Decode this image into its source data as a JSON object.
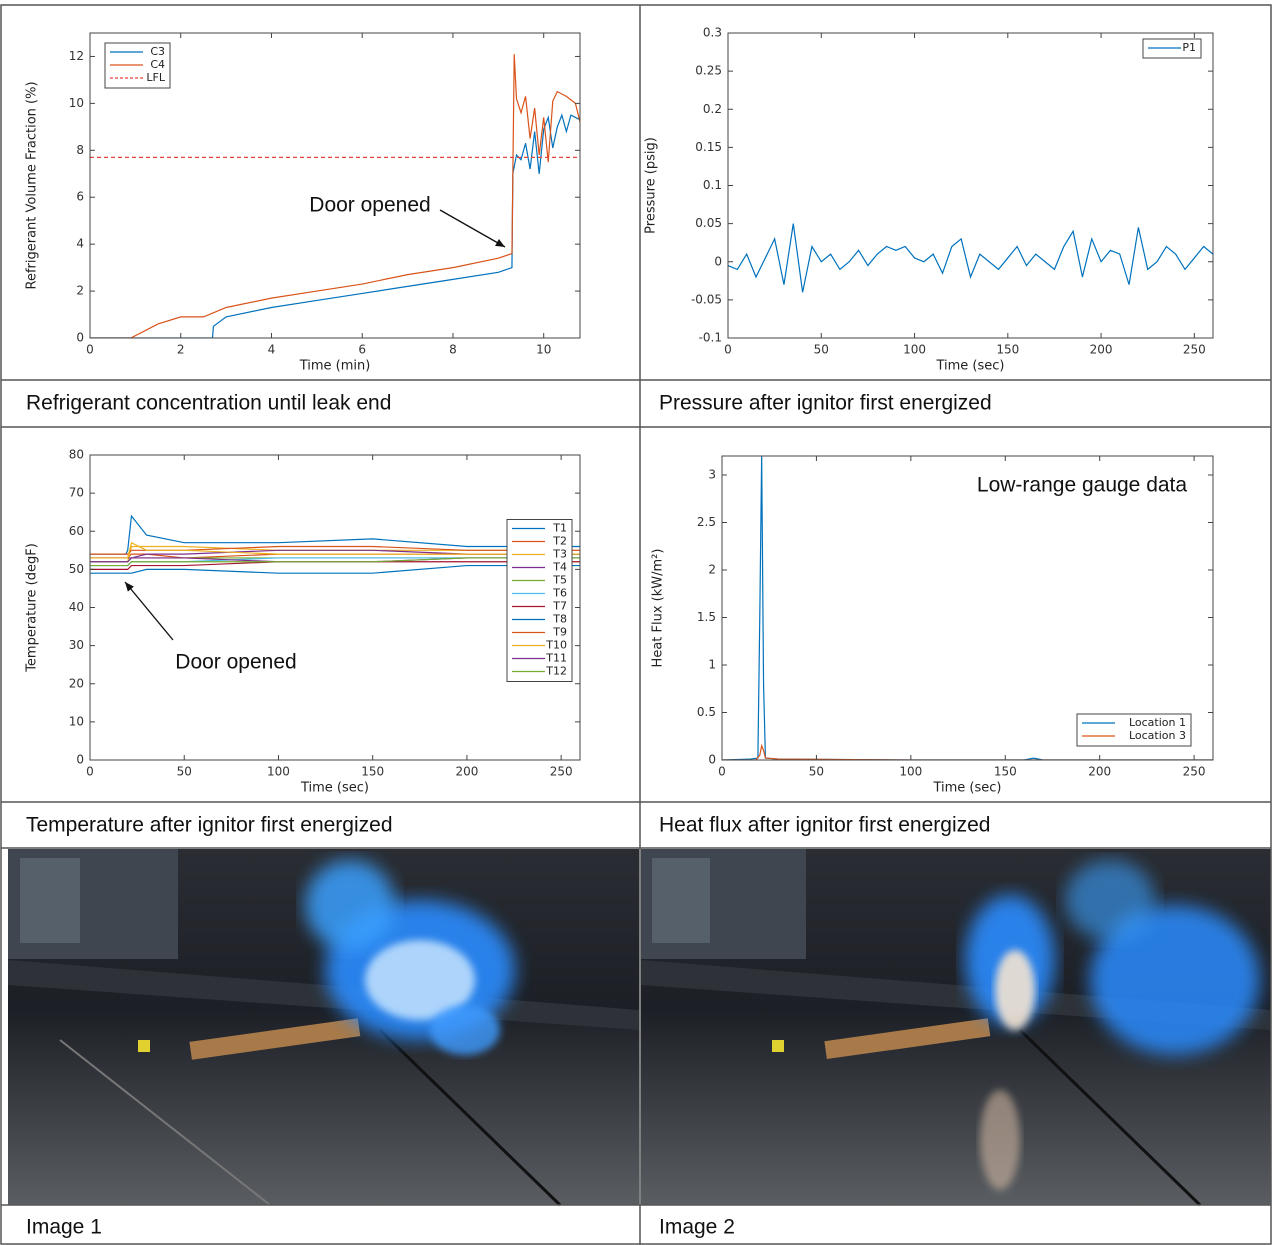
{
  "chart_data": [
    {
      "type": "line",
      "xlabel": "Time (min)",
      "ylabel": "Refrigerant Volume Fraction (%)",
      "xlim": [
        0,
        10.8
      ],
      "ylim": [
        0,
        13
      ],
      "xticks": [
        0,
        2,
        4,
        6,
        8,
        10
      ],
      "yticks": [
        0,
        2,
        4,
        6,
        8,
        10,
        12
      ],
      "legend": "upper-left",
      "annotation": "Door opened",
      "series": [
        {
          "name": "C3",
          "color": "#0072bd",
          "linestyle": "solid",
          "x": [
            0,
            2.7,
            2.72,
            3,
            4,
            5,
            6,
            7,
            8,
            9,
            9.3,
            9.32,
            9.4,
            9.5,
            9.6,
            9.7,
            9.8,
            9.9,
            10,
            10.1,
            10.2,
            10.3,
            10.4,
            10.5,
            10.6,
            10.7,
            10.8
          ],
          "values": [
            0,
            0,
            0.5,
            0.9,
            1.3,
            1.6,
            1.9,
            2.2,
            2.5,
            2.8,
            3.0,
            7.0,
            7.8,
            7.6,
            8.3,
            7.2,
            8.8,
            7.0,
            8.9,
            9.4,
            8.1,
            9.0,
            9.5,
            8.8,
            9.5,
            9.4,
            9.3
          ]
        },
        {
          "name": "C4",
          "color": "#d95319",
          "linestyle": "solid",
          "x": [
            0,
            0.9,
            1.5,
            2,
            2.5,
            3,
            4,
            5,
            6,
            7,
            8,
            9,
            9.3,
            9.35,
            9.4,
            9.5,
            9.6,
            9.7,
            9.8,
            9.9,
            10,
            10.1,
            10.2,
            10.3,
            10.5,
            10.7,
            10.8
          ],
          "values": [
            0,
            0,
            0.6,
            0.9,
            0.9,
            1.3,
            1.7,
            2.0,
            2.3,
            2.7,
            3.0,
            3.4,
            3.6,
            12.1,
            10.2,
            9.6,
            10.3,
            8.5,
            9.8,
            7.8,
            9.4,
            7.5,
            10.1,
            10.5,
            10.3,
            10.0,
            9.2
          ]
        },
        {
          "name": "LFL",
          "color": "#e8453c",
          "linestyle": "dashed",
          "x": [
            0,
            10.8
          ],
          "values": [
            7.7,
            7.7
          ]
        }
      ]
    },
    {
      "type": "line",
      "xlabel": "Time (sec)",
      "ylabel": "Pressure (psig)",
      "xlim": [
        0,
        260
      ],
      "ylim": [
        -0.1,
        0.3
      ],
      "xticks": [
        0,
        50,
        100,
        150,
        200,
        250
      ],
      "yticks": [
        -0.1,
        -0.05,
        0,
        0.05,
        0.1,
        0.15,
        0.2,
        0.25,
        0.3
      ],
      "legend": "upper-right",
      "series": [
        {
          "name": "P1",
          "color": "#0072bd",
          "linestyle": "solid",
          "x": [
            0,
            5,
            10,
            15,
            20,
            25,
            30,
            35,
            40,
            45,
            50,
            55,
            60,
            65,
            70,
            75,
            80,
            85,
            90,
            95,
            100,
            105,
            110,
            115,
            120,
            125,
            130,
            135,
            140,
            145,
            150,
            155,
            160,
            165,
            170,
            175,
            180,
            185,
            190,
            195,
            200,
            205,
            210,
            215,
            220,
            225,
            230,
            235,
            240,
            245,
            250,
            255,
            260
          ],
          "values": [
            -0.005,
            -0.01,
            0.01,
            -0.02,
            0.005,
            0.03,
            -0.03,
            0.05,
            -0.04,
            0.02,
            0.0,
            0.01,
            -0.01,
            0.0,
            0.015,
            -0.005,
            0.01,
            0.02,
            0.015,
            0.02,
            0.005,
            0.0,
            0.01,
            -0.015,
            0.02,
            0.03,
            -0.02,
            0.01,
            0.0,
            -0.01,
            0.005,
            0.02,
            -0.005,
            0.01,
            0.0,
            -0.01,
            0.02,
            0.04,
            -0.02,
            0.03,
            0.0,
            0.015,
            0.01,
            -0.03,
            0.045,
            -0.01,
            0.0,
            0.02,
            0.01,
            -0.01,
            0.005,
            0.02,
            0.01
          ]
        }
      ]
    },
    {
      "type": "line",
      "xlabel": "Time (sec)",
      "ylabel": "Temperature (degF)",
      "xlim": [
        0,
        260
      ],
      "ylim": [
        0,
        80
      ],
      "xticks": [
        0,
        50,
        100,
        150,
        200,
        250
      ],
      "yticks": [
        0,
        10,
        20,
        30,
        40,
        50,
        60,
        70,
        80
      ],
      "legend": "center-right",
      "annotation": "Door opened",
      "x": [
        0,
        10,
        19,
        20,
        22,
        30,
        50,
        100,
        150,
        200,
        260
      ],
      "series": [
        {
          "name": "T1",
          "color": "#0072bd",
          "linestyle": "solid",
          "values": [
            54,
            54,
            54,
            55,
            64,
            59,
            57,
            57,
            58,
            56,
            56
          ]
        },
        {
          "name": "T2",
          "color": "#d95319",
          "linestyle": "solid",
          "values": [
            53,
            53,
            53,
            53,
            54,
            54,
            53,
            54,
            54,
            54,
            54
          ]
        },
        {
          "name": "T3",
          "color": "#edb120",
          "linestyle": "solid",
          "values": [
            52,
            52,
            52,
            52,
            56,
            56,
            56,
            55,
            55,
            55,
            55
          ]
        },
        {
          "name": "T4",
          "color": "#7e2f8e",
          "linestyle": "solid",
          "values": [
            53,
            53,
            53,
            53,
            53,
            54,
            54,
            55,
            55,
            54,
            54
          ]
        },
        {
          "name": "T5",
          "color": "#77ac30",
          "linestyle": "solid",
          "values": [
            52,
            52,
            52,
            52,
            53,
            53,
            53,
            53,
            53,
            53,
            53
          ]
        },
        {
          "name": "T6",
          "color": "#4dbeee",
          "linestyle": "solid",
          "values": [
            51,
            51,
            51,
            51,
            52,
            52,
            52,
            53,
            53,
            53,
            53
          ]
        },
        {
          "name": "T7",
          "color": "#a2142f",
          "linestyle": "solid",
          "values": [
            50,
            50,
            50,
            50,
            51,
            51,
            51,
            52,
            52,
            52,
            52
          ]
        },
        {
          "name": "T8",
          "color": "#0072bd",
          "linestyle": "solid",
          "values": [
            49,
            49,
            49,
            49,
            49,
            50,
            50,
            49,
            49,
            51,
            51
          ]
        },
        {
          "name": "T9",
          "color": "#d95319",
          "linestyle": "solid",
          "values": [
            54,
            54,
            54,
            54,
            55,
            55,
            55,
            56,
            56,
            55,
            55
          ]
        },
        {
          "name": "T10",
          "color": "#edb120",
          "linestyle": "solid",
          "values": [
            53,
            53,
            53,
            53,
            57,
            55,
            55,
            54,
            54,
            54,
            54
          ]
        },
        {
          "name": "T11",
          "color": "#7e2f8e",
          "linestyle": "solid",
          "values": [
            52,
            52,
            52,
            52,
            53,
            53,
            53,
            52,
            52,
            53,
            53
          ]
        },
        {
          "name": "T12",
          "color": "#77ac30",
          "linestyle": "solid",
          "values": [
            51,
            51,
            51,
            51,
            52,
            52,
            52,
            52,
            52,
            53,
            53
          ]
        }
      ]
    },
    {
      "type": "line",
      "xlabel": "Time (sec)",
      "ylabel": "Heat Flux (kW/m²)",
      "xlim": [
        0,
        260
      ],
      "ylim": [
        0,
        3.2
      ],
      "xticks": [
        0,
        50,
        100,
        150,
        200,
        250
      ],
      "yticks": [
        0,
        0.5,
        1,
        1.5,
        2,
        2.5,
        3
      ],
      "legend": "lower-right",
      "annotation": "Low-range gauge data",
      "series": [
        {
          "name": "Location 1",
          "color": "#0072bd",
          "linestyle": "solid",
          "x": [
            0,
            15,
            19,
            20,
            21,
            22,
            23,
            30,
            100,
            160,
            165,
            170,
            260
          ],
          "values": [
            0,
            0.01,
            0.02,
            1.5,
            3.2,
            0.8,
            0.02,
            0.01,
            0.0,
            0.0,
            0.02,
            0.0,
            0.0
          ]
        },
        {
          "name": "Location 3",
          "color": "#d95319",
          "linestyle": "solid",
          "x": [
            0,
            18,
            20,
            21,
            22,
            23,
            30,
            100,
            260
          ],
          "values": [
            0,
            0,
            0.05,
            0.15,
            0.1,
            0.02,
            0.01,
            0.0,
            0.0
          ]
        }
      ]
    }
  ],
  "captions": [
    "Refrigerant concentration until leak end",
    "Pressure after ignitor first energized",
    "Temperature after ignitor first energized",
    "Heat flux after ignitor first energized",
    "Image 1",
    "Image 2"
  ]
}
